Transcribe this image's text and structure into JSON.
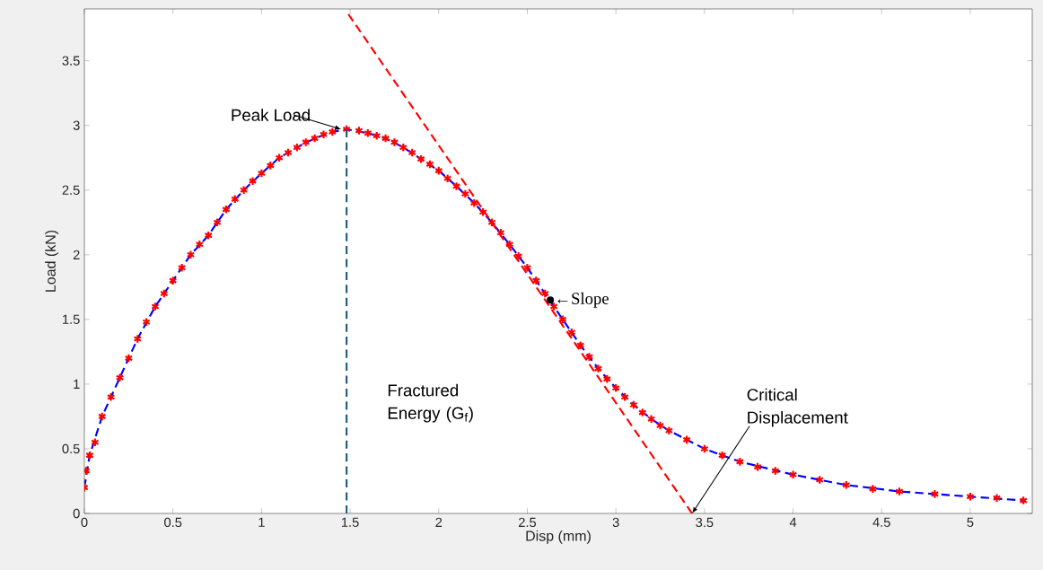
{
  "chart_data": {
    "type": "line",
    "xlabel": "Disp (mm)",
    "ylabel": "Load (kN)",
    "xlim": [
      0,
      5.35
    ],
    "ylim": [
      0,
      3.9
    ],
    "xticks": [
      0,
      0.5,
      1,
      1.5,
      2,
      2.5,
      3,
      3.5,
      4,
      4.5,
      5
    ],
    "yticks": [
      0,
      0.5,
      1,
      1.5,
      2,
      2.5,
      3,
      3.5
    ],
    "grid": false,
    "series": [
      {
        "color": "#0000ff",
        "line_style": "dashed",
        "x": [
          0,
          0.03,
          0.1,
          0.2,
          0.3,
          0.4,
          0.5,
          0.6,
          0.7,
          0.8,
          0.9,
          1.0,
          1.1,
          1.2,
          1.3,
          1.4,
          1.48,
          1.6,
          1.7,
          1.8,
          1.9,
          2.0,
          2.1,
          2.2,
          2.3,
          2.4,
          2.5,
          2.6,
          2.7,
          2.8,
          2.9,
          3.0,
          3.1,
          3.2,
          3.3,
          3.5,
          3.7,
          4.0,
          4.3,
          4.6,
          5.0,
          5.3
        ],
        "values": [
          0.2,
          0.45,
          0.75,
          1.05,
          1.35,
          1.6,
          1.8,
          2.0,
          2.15,
          2.35,
          2.5,
          2.63,
          2.75,
          2.83,
          2.9,
          2.95,
          2.97,
          2.94,
          2.9,
          2.83,
          2.74,
          2.65,
          2.53,
          2.4,
          2.25,
          2.08,
          1.9,
          1.7,
          1.5,
          1.3,
          1.12,
          0.97,
          0.84,
          0.73,
          0.64,
          0.5,
          0.4,
          0.3,
          0.22,
          0.17,
          0.13,
          0.1
        ]
      },
      {
        "color": "#ff0000",
        "line_style": "dashed",
        "x": [
          1.49,
          3.43
        ],
        "values": [
          3.86,
          0
        ]
      },
      {
        "type": "scatter",
        "color": "#ff0000",
        "marker": "cross",
        "x": [
          0,
          0.01,
          0.03,
          0.06,
          0.1,
          0.15,
          0.2,
          0.25,
          0.3,
          0.35,
          0.4,
          0.45,
          0.5,
          0.55,
          0.6,
          0.65,
          0.7,
          0.75,
          0.8,
          0.85,
          0.9,
          0.95,
          1.0,
          1.05,
          1.1,
          1.15,
          1.2,
          1.25,
          1.3,
          1.35,
          1.4,
          1.48,
          1.55,
          1.6,
          1.65,
          1.7,
          1.75,
          1.8,
          1.85,
          1.9,
          1.95,
          2.0,
          2.05,
          2.1,
          2.15,
          2.2,
          2.25,
          2.3,
          2.35,
          2.4,
          2.45,
          2.5,
          2.55,
          2.6,
          2.65,
          2.7,
          2.75,
          2.8,
          2.85,
          2.9,
          2.95,
          3.0,
          3.05,
          3.1,
          3.15,
          3.2,
          3.25,
          3.3,
          3.4,
          3.5,
          3.6,
          3.7,
          3.8,
          3.9,
          4.0,
          4.15,
          4.3,
          4.45,
          4.6,
          4.8,
          5.0,
          5.15,
          5.3
        ],
        "values": [
          0.2,
          0.33,
          0.45,
          0.55,
          0.75,
          0.9,
          1.05,
          1.2,
          1.35,
          1.48,
          1.6,
          1.7,
          1.8,
          1.9,
          2.0,
          2.08,
          2.15,
          2.25,
          2.35,
          2.43,
          2.5,
          2.57,
          2.63,
          2.69,
          2.75,
          2.79,
          2.83,
          2.87,
          2.9,
          2.93,
          2.95,
          2.97,
          2.96,
          2.94,
          2.92,
          2.9,
          2.87,
          2.83,
          2.79,
          2.74,
          2.7,
          2.65,
          2.59,
          2.53,
          2.47,
          2.4,
          2.33,
          2.25,
          2.17,
          2.08,
          1.99,
          1.9,
          1.8,
          1.7,
          1.6,
          1.5,
          1.4,
          1.3,
          1.21,
          1.12,
          1.04,
          0.97,
          0.9,
          0.84,
          0.78,
          0.73,
          0.68,
          0.64,
          0.57,
          0.5,
          0.45,
          0.4,
          0.36,
          0.33,
          0.3,
          0.26,
          0.22,
          0.19,
          0.17,
          0.15,
          0.13,
          0.12,
          0.1
        ]
      },
      {
        "color": "#1f5c7a",
        "line_style": "dashed",
        "x": [
          1.48,
          1.48
        ],
        "values": [
          2.97,
          0
        ]
      },
      {
        "type": "scatter",
        "color": "#000000",
        "marker": "circle",
        "x": [
          2.63
        ],
        "values": [
          1.65
        ]
      }
    ],
    "annotations": [
      {
        "text": "Peak Load",
        "x": 1.45,
        "y": 2.97
      },
      {
        "text": "←Slope",
        "x": 2.63,
        "y": 1.65
      },
      "Fractured Energy (G$_{f}$)",
      {
        "text": "Critical Displacement",
        "x": 3.43,
        "y": 0
      }
    ]
  }
}
